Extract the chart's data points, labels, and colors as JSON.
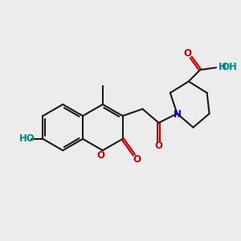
{
  "bg_color": "#ececec",
  "bond_color": "#1a1a1a",
  "O_color": "#cc0000",
  "N_color": "#0000cc",
  "H_color": "#008888",
  "line_width": 1.5,
  "figsize": [
    3.0,
    3.0
  ],
  "dpi": 100,
  "xlim": [
    0,
    10
  ],
  "ylim": [
    0,
    10
  ]
}
